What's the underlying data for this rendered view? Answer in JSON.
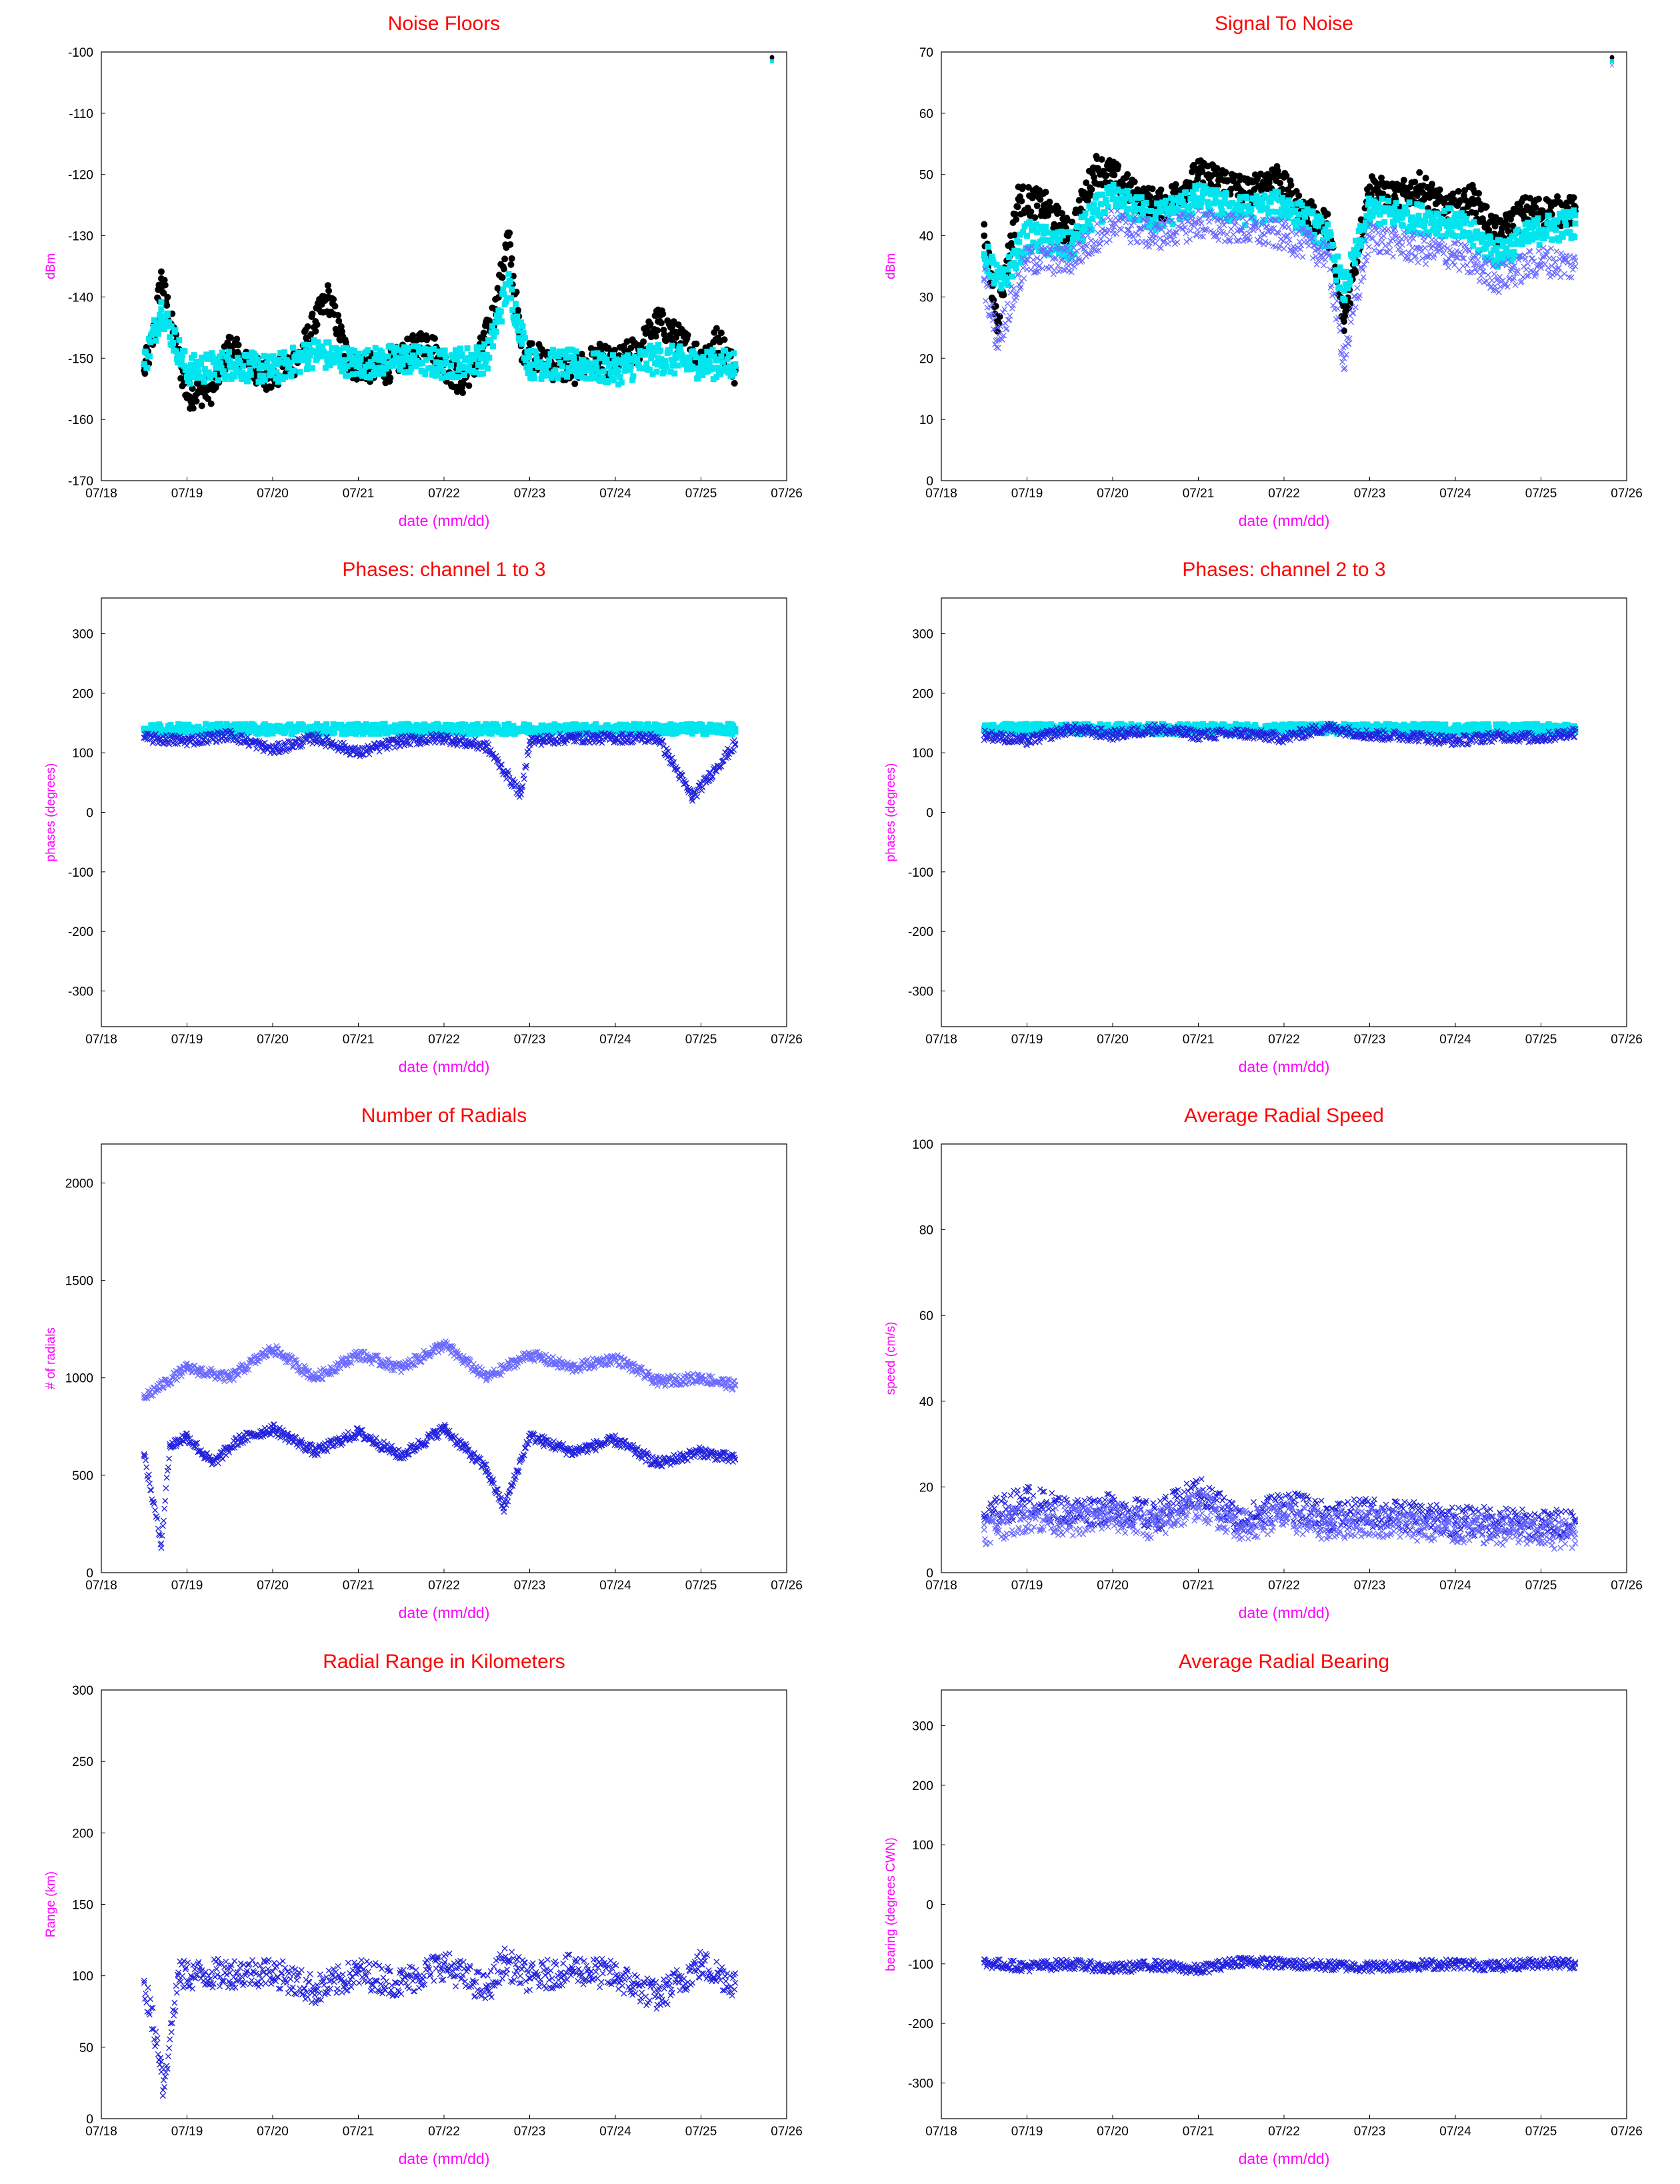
{
  "colors": {
    "title": "#ff0000",
    "label": "#ff00ff",
    "series_black": "#000000",
    "series_cyan": "#00e5ee",
    "series_blue": "#2222dd",
    "series_ltblue": "#6a6aff"
  },
  "x_tick_labels": [
    "07/18",
    "07/19",
    "07/20",
    "07/21",
    "07/22",
    "07/23",
    "07/24",
    "07/25",
    "07/26"
  ],
  "chart_data": [
    {
      "type": "scatter",
      "title": "Noise Floors",
      "xlabel": "date (mm/dd)",
      "ylabel": "dBm",
      "xlim": [
        "07/18",
        "07/26"
      ],
      "ylim": [
        -170,
        -100
      ],
      "yticks": [
        -100,
        -110,
        -120,
        -130,
        -140,
        -150,
        -160,
        -170
      ],
      "grid": false,
      "legend": "top-right",
      "series": [
        {
          "color": "#000000",
          "marker": "dot",
          "x": [
            0.5,
            0.6,
            0.7,
            1.0,
            1.3,
            1.5,
            1.75,
            2.0,
            2.3,
            2.5,
            2.65,
            2.9,
            3.3,
            3.5,
            3.8,
            4.0,
            4.2,
            4.4,
            4.6,
            4.75,
            4.9,
            5.2,
            5.5,
            5.8,
            6.0,
            6.3,
            6.5,
            7.0,
            7.2,
            7.4
          ],
          "y": [
            -152,
            -147,
            -137,
            -156,
            -155,
            -148,
            -152,
            -153,
            -150,
            -144,
            -140,
            -151,
            -152,
            -150,
            -147,
            -151,
            -154,
            -150,
            -142,
            -130,
            -148,
            -151,
            -152,
            -150,
            -151,
            -148,
            -144,
            -150,
            -147,
            -152
          ]
        },
        {
          "color": "#00e5ee",
          "marker": "square",
          "x": [
            0.5,
            0.7,
            1.0,
            1.5,
            2.0,
            2.5,
            3.0,
            3.5,
            4.0,
            4.5,
            4.75,
            5.0,
            5.5,
            6.0,
            6.5,
            7.0,
            7.4
          ],
          "y": [
            -151,
            -142,
            -152,
            -151,
            -152,
            -149,
            -151,
            -150,
            -151,
            -150,
            -138,
            -151,
            -151,
            -152,
            -150,
            -151,
            -151
          ]
        }
      ]
    },
    {
      "type": "scatter",
      "title": "Signal To Noise",
      "xlabel": "date (mm/dd)",
      "ylabel": "dBm",
      "xlim": [
        "07/18",
        "07/26"
      ],
      "ylim": [
        0,
        70
      ],
      "yticks": [
        70,
        60,
        50,
        40,
        30,
        20,
        10,
        0
      ],
      "grid": false,
      "legend": "top-right",
      "series": [
        {
          "color": "#000000",
          "marker": "dot",
          "x": [
            0.5,
            0.65,
            0.9,
            1.2,
            1.5,
            1.8,
            2.0,
            2.3,
            2.6,
            3.0,
            3.3,
            3.6,
            3.9,
            4.2,
            4.5,
            4.7,
            5.0,
            5.3,
            5.6,
            5.9,
            6.2,
            6.5,
            6.8,
            7.1,
            7.4
          ],
          "y": [
            40,
            26,
            46,
            45,
            40,
            51,
            50,
            46,
            45,
            50,
            49,
            47,
            50,
            44,
            42,
            26,
            48,
            46,
            48,
            44,
            46,
            40,
            44,
            44,
            44
          ]
        },
        {
          "color": "#00e5ee",
          "marker": "square",
          "x": [
            0.5,
            0.7,
            1.0,
            1.5,
            1.8,
            2.0,
            2.5,
            3.0,
            3.5,
            4.0,
            4.5,
            4.7,
            5.0,
            5.5,
            6.0,
            6.5,
            7.0,
            7.4
          ],
          "y": [
            37,
            32,
            40,
            38,
            44,
            46,
            43,
            46,
            44,
            45,
            40,
            31,
            44,
            43,
            42,
            37,
            41,
            42
          ]
        },
        {
          "color": "#6a6aff",
          "marker": "x",
          "x": [
            0.5,
            0.65,
            1.0,
            1.5,
            2.0,
            2.5,
            3.0,
            3.5,
            4.0,
            4.5,
            4.7,
            5.0,
            5.5,
            6.0,
            6.5,
            7.0,
            7.4
          ],
          "y": [
            33,
            23,
            36,
            36,
            42,
            40,
            42,
            41,
            40,
            37,
            20,
            40,
            38,
            37,
            33,
            36,
            35
          ]
        }
      ]
    },
    {
      "type": "scatter",
      "title": "Phases: channel 1 to 3",
      "xlabel": "date (mm/dd)",
      "ylabel": "phases (degrees)",
      "xlim": [
        "07/18",
        "07/26"
      ],
      "ylim": [
        -360,
        360
      ],
      "yticks": [
        300,
        200,
        100,
        0,
        -100,
        -200,
        -300
      ],
      "grid": false,
      "series": [
        {
          "color": "#00e5ee",
          "marker": "square",
          "x": [
            0.5,
            7.4
          ],
          "y": [
            140,
            140
          ]
        },
        {
          "color": "#2222dd",
          "marker": "x",
          "x": [
            0.5,
            1.0,
            1.5,
            2.0,
            2.5,
            3.0,
            3.5,
            4.0,
            4.5,
            4.9,
            5.0,
            5.5,
            6.0,
            6.5,
            6.9,
            7.4
          ],
          "y": [
            125,
            120,
            130,
            105,
            125,
            100,
            120,
            125,
            110,
            30,
            120,
            125,
            125,
            125,
            25,
            115
          ]
        }
      ]
    },
    {
      "type": "scatter",
      "title": "Phases: channel 2 to 3",
      "xlabel": "date (mm/dd)",
      "ylabel": "phases (degrees)",
      "xlim": [
        "07/18",
        "07/26"
      ],
      "ylim": [
        -360,
        360
      ],
      "yticks": [
        300,
        200,
        100,
        0,
        -100,
        -200,
        -300
      ],
      "grid": false,
      "series": [
        {
          "color": "#00e5ee",
          "marker": "square",
          "x": [
            0.5,
            7.4
          ],
          "y": [
            140,
            140
          ]
        },
        {
          "color": "#2222dd",
          "marker": "x",
          "x": [
            0.5,
            1.0,
            1.5,
            2.0,
            2.5,
            3.0,
            3.5,
            4.0,
            4.5,
            5.0,
            5.5,
            6.0,
            6.5,
            7.0,
            7.4
          ],
          "y": [
            130,
            120,
            140,
            130,
            140,
            130,
            133,
            125,
            143,
            130,
            128,
            120,
            128,
            125,
            135
          ]
        }
      ]
    },
    {
      "type": "scatter",
      "title": "Number of Radials",
      "xlabel": "date (mm/dd)",
      "ylabel": "# of radials",
      "xlim": [
        "07/18",
        "07/26"
      ],
      "ylim": [
        0,
        2200
      ],
      "yticks": [
        2000,
        1500,
        1000,
        500,
        0
      ],
      "grid": false,
      "series": [
        {
          "color": "#2222dd",
          "marker": "x",
          "x": [
            0.5,
            0.7,
            0.8,
            1.0,
            1.3,
            1.6,
            2.0,
            2.5,
            3.0,
            3.5,
            4.0,
            4.5,
            4.7,
            5.0,
            5.5,
            6.0,
            6.5,
            7.0,
            7.4
          ],
          "y": [
            600,
            150,
            650,
            700,
            560,
            680,
            740,
            620,
            720,
            600,
            740,
            530,
            330,
            700,
            620,
            680,
            560,
            620,
            580
          ]
        },
        {
          "color": "#6a6aff",
          "marker": "x",
          "x": [
            0.5,
            1.0,
            1.5,
            2.0,
            2.5,
            3.0,
            3.5,
            4.0,
            4.5,
            5.0,
            5.5,
            6.0,
            6.5,
            7.0,
            7.4
          ],
          "y": [
            900,
            1050,
            1000,
            1150,
            1000,
            1120,
            1050,
            1170,
            1000,
            1120,
            1050,
            1100,
            980,
            1000,
            960
          ]
        }
      ]
    },
    {
      "type": "scatter",
      "title": "Average Radial Speed",
      "xlabel": "date (mm/dd)",
      "ylabel": "speed (cm/s)",
      "xlim": [
        "07/18",
        "07/26"
      ],
      "ylim": [
        0,
        100
      ],
      "yticks": [
        100,
        80,
        60,
        40,
        20,
        0
      ],
      "grid": false,
      "series": [
        {
          "color": "#2222dd",
          "marker": "x",
          "x": [
            0.5,
            1.0,
            1.5,
            2.0,
            2.5,
            3.0,
            3.5,
            4.0,
            4.5,
            5.0,
            5.5,
            6.0,
            6.5,
            7.0,
            7.4
          ],
          "y": [
            13,
            17,
            14,
            15,
            13,
            19,
            12,
            16,
            13,
            14,
            13,
            12,
            12,
            11,
            12
          ]
        },
        {
          "color": "#6a6aff",
          "marker": "x",
          "x": [
            0.5,
            1.0,
            1.5,
            2.0,
            2.5,
            3.0,
            3.5,
            4.0,
            4.5,
            5.0,
            5.5,
            6.0,
            6.5,
            7.0,
            7.4
          ],
          "y": [
            10,
            13,
            12,
            13,
            11,
            16,
            11,
            13,
            11,
            12,
            11,
            10,
            10,
            9,
            9
          ]
        }
      ]
    },
    {
      "type": "scatter",
      "title": "Radial Range in Kilometers",
      "xlabel": "date (mm/dd)",
      "ylabel": "Range (km)",
      "xlim": [
        "07/18",
        "07/26"
      ],
      "ylim": [
        0,
        300
      ],
      "yticks": [
        300,
        250,
        200,
        150,
        100,
        50,
        0
      ],
      "grid": false,
      "series": [
        {
          "color": "#2222dd",
          "marker": "x",
          "x": [
            0.5,
            0.7,
            0.72,
            0.9,
            1.5,
            2.0,
            2.5,
            3.0,
            3.5,
            4.0,
            4.5,
            4.7,
            5.0,
            5.5,
            6.0,
            6.5,
            7.0,
            7.4
          ],
          "y": [
            95,
            40,
            20,
            100,
            102,
            103,
            90,
            102,
            95,
            108,
            90,
            110,
            98,
            105,
            100,
            85,
            108,
            95
          ]
        }
      ]
    },
    {
      "type": "scatter",
      "title": "Average Radial Bearing",
      "xlabel": "date (mm/dd)",
      "ylabel": "bearing (degrees CWN)",
      "xlim": [
        "07/18",
        "07/26"
      ],
      "ylim": [
        -360,
        360
      ],
      "yticks": [
        300,
        200,
        100,
        0,
        -100,
        -200,
        -300
      ],
      "grid": false,
      "series": [
        {
          "color": "#2222dd",
          "marker": "x",
          "x": [
            0.5,
            1.0,
            1.5,
            2.0,
            2.5,
            3.0,
            3.5,
            4.0,
            4.5,
            5.0,
            5.5,
            6.0,
            6.5,
            7.0,
            7.4
          ],
          "y": [
            -98,
            -105,
            -100,
            -108,
            -102,
            -110,
            -95,
            -100,
            -103,
            -105,
            -102,
            -100,
            -104,
            -98,
            -100
          ]
        }
      ]
    }
  ]
}
